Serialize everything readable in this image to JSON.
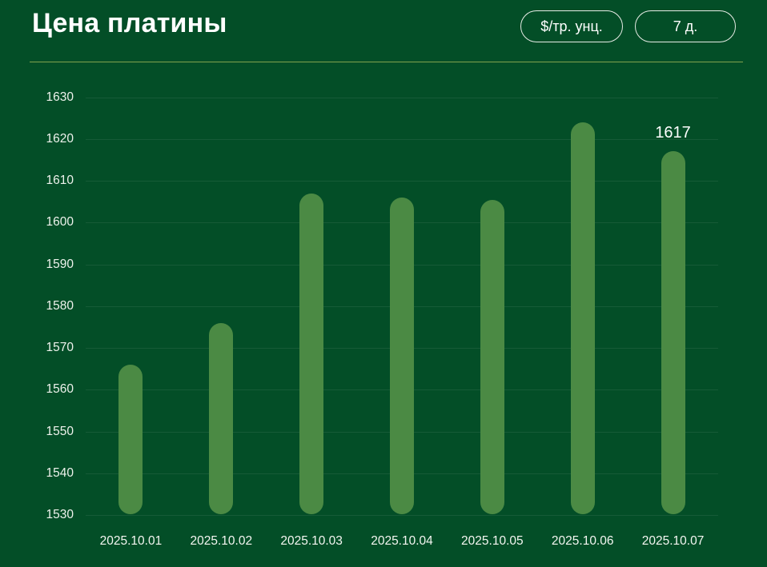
{
  "header": {
    "title": "Цена платины",
    "unit_button": "$/тр. унц.",
    "period_button": "7 д."
  },
  "chart_data": {
    "type": "bar",
    "title": "Цена платины",
    "categories": [
      "2025.10.01",
      "2025.10.02",
      "2025.10.03",
      "2025.10.04",
      "2025.10.05",
      "2025.10.06",
      "2025.10.07"
    ],
    "values": [
      1566,
      1576,
      1607,
      1606,
      1605.5,
      1624,
      1617
    ],
    "ylim": [
      1530,
      1630
    ],
    "ytick_step": 10,
    "yticks": [
      1530,
      1540,
      1550,
      1560,
      1570,
      1580,
      1590,
      1600,
      1610,
      1620,
      1630
    ],
    "grid": true,
    "legend": false,
    "xlabel": "",
    "ylabel": "",
    "annotation": {
      "index": 6,
      "text": "1617"
    },
    "bar_color": "#4b8a44"
  },
  "colors": {
    "background": "#034e27",
    "bar": "#4b8a44",
    "gridline": "rgba(255,255,255,0.08)",
    "separator": "#83a24d",
    "text": "#ffffff"
  }
}
